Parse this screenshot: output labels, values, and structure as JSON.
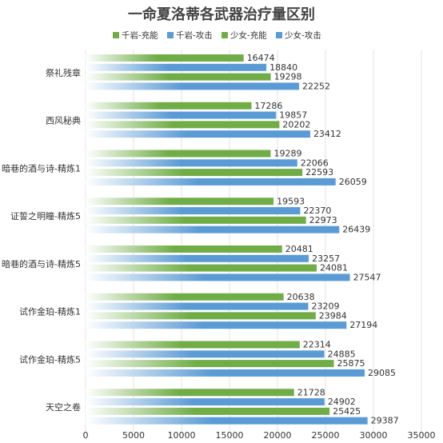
{
  "chart_data": {
    "type": "bar",
    "orientation": "horizontal",
    "title": "一命夏洛蒂各武器治疗量区别",
    "categories": [
      "祭礼残章",
      "西风秘典",
      "暗巷的酒与诗-精炼1",
      "证誓之明瞳-精炼5",
      "暗巷的酒与诗-精炼5",
      "试作金珀-精炼1",
      "试作金珀-精炼5",
      "天空之卷"
    ],
    "series": [
      {
        "name": "千岩-充能",
        "color": "#70ad47",
        "values": [
          16474,
          17286,
          19289,
          19593,
          20481,
          20638,
          22314,
          21728
        ]
      },
      {
        "name": "千岩-攻击",
        "color": "#5b9bd5",
        "values": [
          18840,
          19857,
          22066,
          22370,
          23257,
          23209,
          24885,
          24902
        ]
      },
      {
        "name": "少女-充能",
        "color": "#70ad47",
        "values": [
          19298,
          20202,
          22593,
          22973,
          24081,
          23984,
          25875,
          25425
        ]
      },
      {
        "name": "少女-攻击",
        "color": "#5b9bd5",
        "values": [
          22252,
          23412,
          26059,
          26439,
          27547,
          27194,
          29085,
          29387
        ]
      }
    ],
    "xlim": [
      0,
      35000
    ],
    "xticks": [
      0,
      5000,
      10000,
      15000,
      20000,
      25000,
      30000,
      35000
    ],
    "grid": true,
    "legend": "top"
  }
}
